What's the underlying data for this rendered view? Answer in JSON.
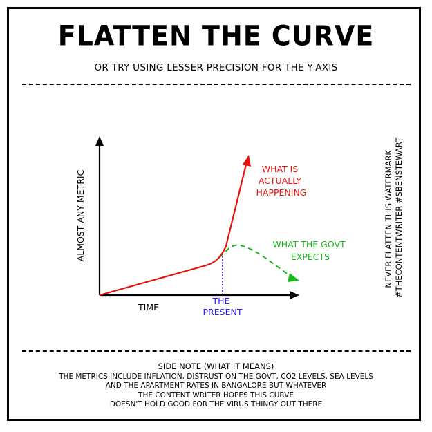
{
  "header": {
    "title": "FLATTEN THE CURVE",
    "subtitle": "OR TRY USING LESSER PRECISION FOR THE Y-AXIS"
  },
  "chart": {
    "ylabel": "ALMOST ANY METRIC",
    "xlabel": "TIME",
    "present_label": [
      "THE",
      "PRESENT"
    ],
    "actual_label": [
      "WHAT IS",
      "ACTUALLY",
      "HAPPENING"
    ],
    "govt_label": [
      "WHAT THE GOVT",
      "EXPECTS"
    ],
    "colors": {
      "actual": "#e8120c",
      "govt": "#19b91c",
      "present": "#2c1cf0",
      "axis": "#000000"
    }
  },
  "watermark": [
    "NEVER FLATTEN THIS WATERMARK",
    "#THECONTENTWRITER #SBENSTEWART"
  ],
  "side_note": {
    "heading": "SIDE NOTE (WHAT IT MEANS)",
    "lines": [
      "THE METRICS INCLUDE INFLATION, DISTRUST ON THE GOVT, CO2 LEVELS, SEA LEVELS",
      "AND THE APARTMENT RATES IN BANGALORE BUT WHATEVER",
      "THE CONTENT WRITER HOPES THIS CURVE",
      "DOESN'T HOLD GOOD FOR THE VIRUS THINGY OUT THERE"
    ]
  }
}
